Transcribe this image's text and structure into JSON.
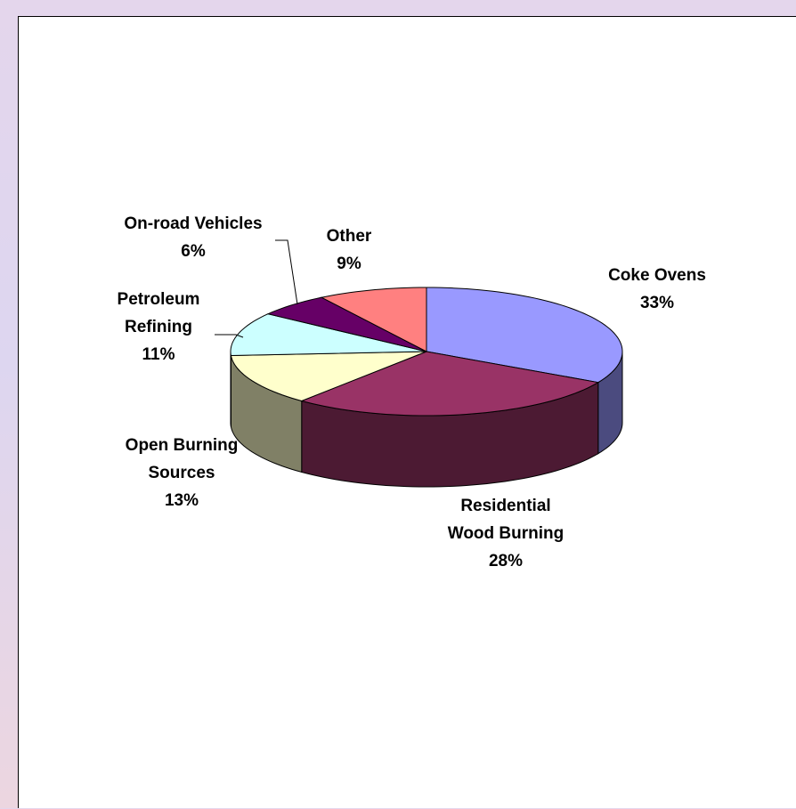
{
  "chart_data": {
    "type": "pie",
    "style": "3d",
    "title": "",
    "categories": [
      "Coke Ovens",
      "Residential Wood Burning",
      "Open Burning Sources",
      "Petroleum Refining",
      "On-road Vehicles",
      "Other"
    ],
    "values": [
      33,
      28,
      13,
      11,
      6,
      9
    ],
    "slices": [
      {
        "name_lines": [
          "Coke Ovens"
        ],
        "percent_label": "33%",
        "value": 33,
        "color": "#9999ff"
      },
      {
        "name_lines": [
          "Residential",
          "Wood Burning"
        ],
        "percent_label": "28%",
        "value": 28,
        "color": "#993366"
      },
      {
        "name_lines": [
          "Open Burning",
          "Sources"
        ],
        "percent_label": "13%",
        "value": 13,
        "color": "#ffffcc"
      },
      {
        "name_lines": [
          "Petroleum",
          "Refining"
        ],
        "percent_label": "11%",
        "value": 11,
        "color": "#ccffff"
      },
      {
        "name_lines": [
          "On-road Vehicles"
        ],
        "percent_label": "6%",
        "value": 6,
        "color": "#660066"
      },
      {
        "name_lines": [
          "Other"
        ],
        "percent_label": "9%",
        "value": 9,
        "color": "#ff8080"
      }
    ],
    "legend": "none"
  }
}
